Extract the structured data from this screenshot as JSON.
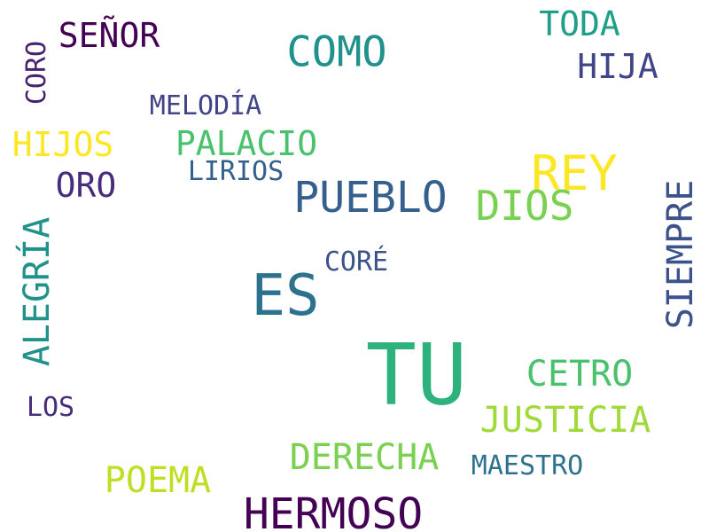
{
  "wordcloud": {
    "words": [
      {
        "id": "tu",
        "text": "TU",
        "color": "#2db27d"
      },
      {
        "id": "es",
        "text": "ES",
        "color": "#2c728e"
      },
      {
        "id": "hermoso",
        "text": "HERMOSO",
        "color": "#440154"
      },
      {
        "id": "pueblo",
        "text": "PUEBLO",
        "color": "#355f8d"
      },
      {
        "id": "rey",
        "text": "REY",
        "color": "#fde725"
      },
      {
        "id": "dios",
        "text": "DIOS",
        "color": "#7ad151"
      },
      {
        "id": "como",
        "text": "COMO",
        "color": "#21918c"
      },
      {
        "id": "siempre",
        "text": "SIEMPRE",
        "color": "#3b528b"
      },
      {
        "id": "alegria",
        "text": "ALEGRÍA",
        "color": "#21918c"
      },
      {
        "id": "justicia",
        "text": "JUSTICIA",
        "color": "#a0da39"
      },
      {
        "id": "derecha",
        "text": "DERECHA",
        "color": "#7ad151"
      },
      {
        "id": "cetro",
        "text": "CETRO",
        "color": "#4ac16d"
      },
      {
        "id": "poema",
        "text": "POEMA",
        "color": "#bddf26"
      },
      {
        "id": "palacio",
        "text": "PALACIO",
        "color": "#4ac16d"
      },
      {
        "id": "hijos",
        "text": "HIJOS",
        "color": "#fde725"
      },
      {
        "id": "senor",
        "text": "SEÑOR",
        "color": "#440154"
      },
      {
        "id": "hija",
        "text": "HIJA",
        "color": "#414487"
      },
      {
        "id": "toda",
        "text": "TODA",
        "color": "#1f9e89"
      },
      {
        "id": "oro",
        "text": "ORO",
        "color": "#472d7b"
      },
      {
        "id": "melodia",
        "text": "MELODÍA",
        "color": "#414487"
      },
      {
        "id": "coro",
        "text": "CORO",
        "color": "#482173"
      },
      {
        "id": "lirios",
        "text": "LIRIOS",
        "color": "#355f8d"
      },
      {
        "id": "core",
        "text": "CORÉ",
        "color": "#3b528b"
      },
      {
        "id": "maestro",
        "text": "MAESTRO",
        "color": "#2c728e"
      },
      {
        "id": "los",
        "text": "LOS",
        "color": "#472d7b"
      }
    ]
  }
}
